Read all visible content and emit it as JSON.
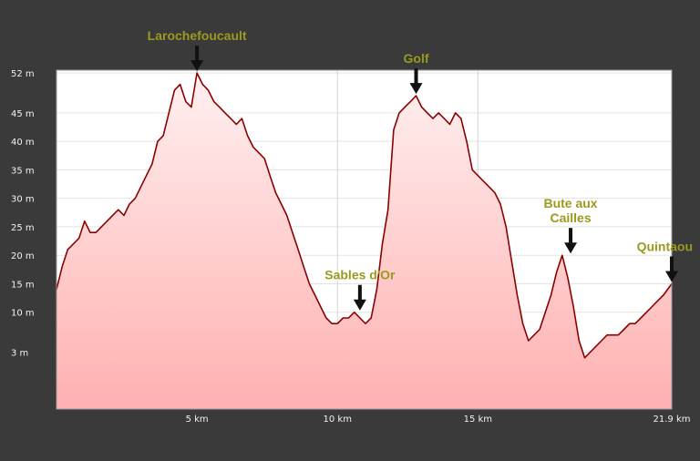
{
  "chart_data": {
    "type": "area",
    "xlabel": "",
    "ylabel": "",
    "x_range_km": [
      0,
      21.9
    ],
    "y_range_m": [
      -7,
      52.5
    ],
    "grid": true,
    "line_color": "#8b0000",
    "fill_top_color": "#fff0f0",
    "fill_bottom_color": "#ffb0b0",
    "annotation_color": "#9a9a1e",
    "x_ticks": [
      {
        "value": 5,
        "label": "5 km"
      },
      {
        "value": 10,
        "label": "10 km"
      },
      {
        "value": 15,
        "label": "15 km"
      },
      {
        "value": 21.9,
        "label": "21.9 km"
      }
    ],
    "y_ticks": [
      {
        "value": 52,
        "label": "52 m"
      },
      {
        "value": 45,
        "label": "45 m"
      },
      {
        "value": 40,
        "label": "40 m"
      },
      {
        "value": 35,
        "label": "35 m"
      },
      {
        "value": 30,
        "label": "30 m"
      },
      {
        "value": 25,
        "label": "25 m"
      },
      {
        "value": 20,
        "label": "20 m"
      },
      {
        "value": 15,
        "label": "15 m"
      },
      {
        "value": 10,
        "label": "10 m"
      },
      {
        "value": 3,
        "label": "3 m"
      }
    ],
    "annotations": [
      {
        "name": "larochefoucault",
        "lines": [
          "Larochefoucault"
        ],
        "x": 5.0,
        "y": 52
      },
      {
        "name": "golf",
        "lines": [
          "Golf"
        ],
        "x": 12.8,
        "y": 48
      },
      {
        "name": "sables-dor",
        "lines": [
          "Sables d'Or"
        ],
        "x": 10.8,
        "y": 10
      },
      {
        "name": "bute-aux-cailles",
        "lines": [
          "Bute  aux",
          "Cailles"
        ],
        "x": 18.3,
        "y": 20
      },
      {
        "name": "quintaou",
        "lines": [
          "Quintaou"
        ],
        "x": 21.9,
        "y": 15
      }
    ],
    "series": [
      {
        "x": [
          0,
          0.2,
          0.4,
          0.6,
          0.8,
          1.0,
          1.2,
          1.4,
          1.6,
          1.8,
          2.0,
          2.2,
          2.4,
          2.6,
          2.8,
          3.0,
          3.2,
          3.4,
          3.6,
          3.8,
          4.0,
          4.2,
          4.4,
          4.6,
          4.8,
          5.0,
          5.2,
          5.4,
          5.6,
          5.8,
          6.0,
          6.2,
          6.4,
          6.6,
          6.8,
          7.0,
          7.2,
          7.4,
          7.6,
          7.8,
          8.0,
          8.2,
          8.4,
          8.6,
          8.8,
          9.0,
          9.2,
          9.4,
          9.6,
          9.8,
          10.0,
          10.2,
          10.4,
          10.6,
          10.8,
          11.0,
          11.2,
          11.4,
          11.6,
          11.8,
          12.0,
          12.2,
          12.4,
          12.6,
          12.8,
          13.0,
          13.2,
          13.4,
          13.6,
          13.8,
          14.0,
          14.2,
          14.4,
          14.6,
          14.8,
          15.0,
          15.2,
          15.4,
          15.6,
          15.8,
          16.0,
          16.2,
          16.4,
          16.6,
          16.8,
          17.0,
          17.2,
          17.4,
          17.6,
          17.8,
          18.0,
          18.2,
          18.4,
          18.6,
          18.8,
          19.0,
          19.2,
          19.4,
          19.6,
          19.8,
          20.0,
          20.2,
          20.4,
          20.6,
          20.8,
          21.0,
          21.2,
          21.4,
          21.6,
          21.9
        ],
        "y": [
          14,
          18,
          21,
          22,
          23,
          26,
          24,
          24,
          25,
          26,
          27,
          28,
          27,
          29,
          30,
          32,
          34,
          36,
          40,
          41,
          45,
          49,
          50,
          47,
          46,
          52,
          50,
          49,
          47,
          46,
          45,
          44,
          43,
          44,
          41,
          39,
          38,
          37,
          34,
          31,
          29,
          27,
          24,
          21,
          18,
          15,
          13,
          11,
          9,
          8,
          8,
          9,
          9,
          10,
          9,
          8,
          9,
          14,
          22,
          28,
          42,
          45,
          46,
          47,
          48,
          46,
          45,
          44,
          45,
          44,
          43,
          45,
          44,
          40,
          35,
          34,
          33,
          32,
          31,
          29,
          25,
          19,
          13,
          8,
          5,
          6,
          7,
          10,
          13,
          17,
          20,
          16,
          11,
          5,
          2,
          3,
          4,
          5,
          6,
          6,
          6,
          7,
          8,
          8,
          9,
          10,
          11,
          12,
          13,
          15
        ]
      }
    ]
  }
}
